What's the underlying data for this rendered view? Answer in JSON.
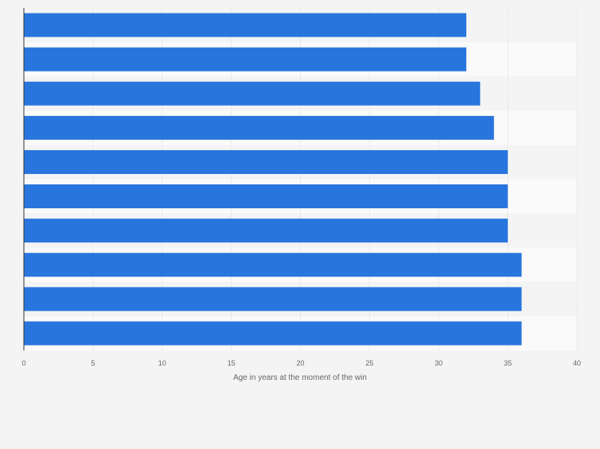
{
  "chart_data": {
    "type": "bar",
    "orientation": "horizontal",
    "categories": [
      "",
      "",
      "",
      "",
      "",
      "",
      "",
      "",
      "",
      ""
    ],
    "values": [
      32,
      32,
      33,
      34,
      35,
      35,
      35,
      36,
      36,
      36
    ],
    "title": "",
    "xlabel": "Age in years at the moment of the win",
    "ylabel": "",
    "xlim": [
      0,
      40
    ],
    "xticks": [
      "0",
      "5",
      "10",
      "15",
      "20",
      "25",
      "30",
      "35",
      "40"
    ],
    "grid": true,
    "legend": "none",
    "bar_color": "#2876dd",
    "band_colors": [
      "#f4f4f4",
      "#fafafa"
    ]
  }
}
